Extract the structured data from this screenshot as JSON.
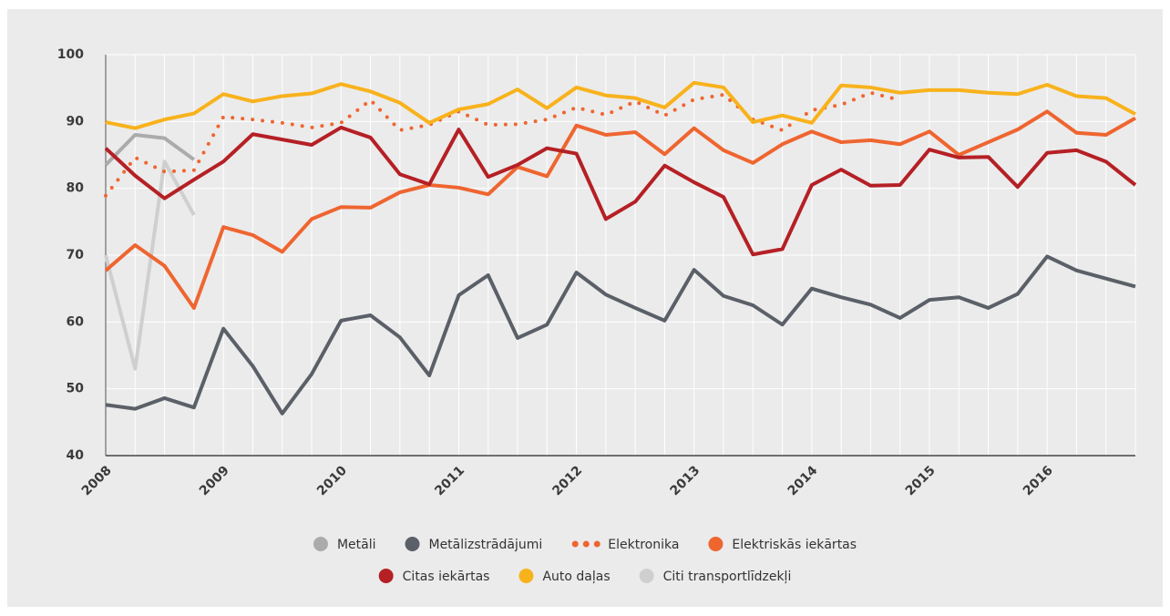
{
  "chart_data": {
    "type": "line",
    "categories": [
      "2008",
      null,
      null,
      null,
      "2009",
      null,
      null,
      null,
      "2010",
      null,
      null,
      null,
      "2011",
      null,
      null,
      null,
      "2012",
      null,
      null,
      null,
      "2013",
      null,
      null,
      null,
      "2014",
      null,
      null,
      null,
      "2015",
      null,
      null,
      null,
      "2016",
      null,
      null,
      null
    ],
    "ylim": [
      40,
      100
    ],
    "yticks": [
      40,
      50,
      60,
      70,
      80,
      90,
      100
    ],
    "grid": true,
    "series": [
      {
        "name": "Metāli",
        "color": "#ababab",
        "style": "solid",
        "values": [
          83.5,
          88,
          87.5,
          84.3,
          null,
          null,
          null,
          null,
          null,
          null,
          null,
          null,
          null,
          null,
          null,
          null,
          null,
          null,
          null,
          null,
          null,
          null,
          null,
          null,
          null,
          null,
          null,
          null,
          null,
          null,
          null,
          null,
          null,
          null,
          null,
          null
        ]
      },
      {
        "name": "Metālizstrādājumi",
        "color": "#5b6068",
        "style": "solid",
        "values": [
          47.6,
          47,
          48.6,
          47.2,
          59,
          53.4,
          46.3,
          52.2,
          60.2,
          61,
          57.7,
          52,
          64,
          67,
          57.6,
          59.6,
          67.4,
          64.1,
          62.1,
          60.2,
          67.8,
          63.9,
          62.5,
          59.6,
          65,
          63.7,
          62.6,
          60.6,
          63.3,
          63.7,
          62.1,
          64.2,
          69.8,
          67.7,
          66.5,
          65.3
        ]
      },
      {
        "name": "Elektronika",
        "color": "#ef6530",
        "style": "dotted",
        "values": [
          78.9,
          84.6,
          82.5,
          82.7,
          90.7,
          90.3,
          89.8,
          89.1,
          89.8,
          93.2,
          88.7,
          89.5,
          91.5,
          89.5,
          89.6,
          90.3,
          92.1,
          91,
          93,
          90.9,
          93.3,
          94,
          90.3,
          88.7,
          91.7,
          92.5,
          94.3,
          93.2,
          null,
          null,
          null,
          null,
          null,
          null,
          null,
          null
        ]
      },
      {
        "name": "Elektriskās iekārtas",
        "color": "#ef6530",
        "style": "solid",
        "values": [
          67.7,
          71.5,
          68.4,
          62.1,
          74.2,
          73,
          70.5,
          75.4,
          77.2,
          77.1,
          79.4,
          80.5,
          80.1,
          79.1,
          83.2,
          81.8,
          89.4,
          88,
          88.4,
          85.1,
          89,
          85.7,
          83.8,
          86.6,
          88.5,
          86.9,
          87.2,
          86.6,
          88.5,
          85,
          86.9,
          88.8,
          91.5,
          88.3,
          88,
          90.5
        ]
      },
      {
        "name": "Citas iekārtas",
        "color": "#b52025",
        "style": "solid",
        "values": [
          86,
          81.9,
          78.5,
          81.3,
          84,
          88.1,
          87.3,
          86.5,
          89.1,
          87.6,
          82.1,
          80.6,
          88.8,
          81.7,
          83.5,
          86,
          85.2,
          75.4,
          78,
          83.4,
          80.9,
          78.7,
          70.1,
          70.9,
          80.5,
          82.8,
          80.4,
          80.5,
          85.8,
          84.6,
          84.7,
          80.2,
          85.3,
          85.7,
          84,
          80.5
        ]
      },
      {
        "name": "Auto daļas",
        "color": "#f8b21c",
        "style": "solid",
        "values": [
          89.9,
          89,
          90.3,
          91.2,
          94.1,
          93,
          93.8,
          94.2,
          95.6,
          94.5,
          92.8,
          89.8,
          91.8,
          92.6,
          94.8,
          92,
          95.1,
          93.9,
          93.5,
          92.1,
          95.8,
          95.1,
          89.9,
          90.9,
          89.8,
          95.4,
          95.1,
          94.3,
          94.7,
          94.7,
          94.3,
          94.1,
          95.5,
          93.8,
          93.5,
          91.1
        ]
      },
      {
        "name": "Citi transportlīdzekļi",
        "color": "#cfcfcf",
        "style": "solid",
        "values": [
          70,
          53,
          84,
          76,
          null,
          null,
          null,
          null,
          null,
          null,
          null,
          null,
          null,
          null,
          null,
          null,
          null,
          null,
          null,
          null,
          null,
          null,
          null,
          null,
          null,
          null,
          null,
          null,
          null,
          null,
          null,
          null,
          null,
          null,
          null,
          null
        ]
      }
    ]
  }
}
